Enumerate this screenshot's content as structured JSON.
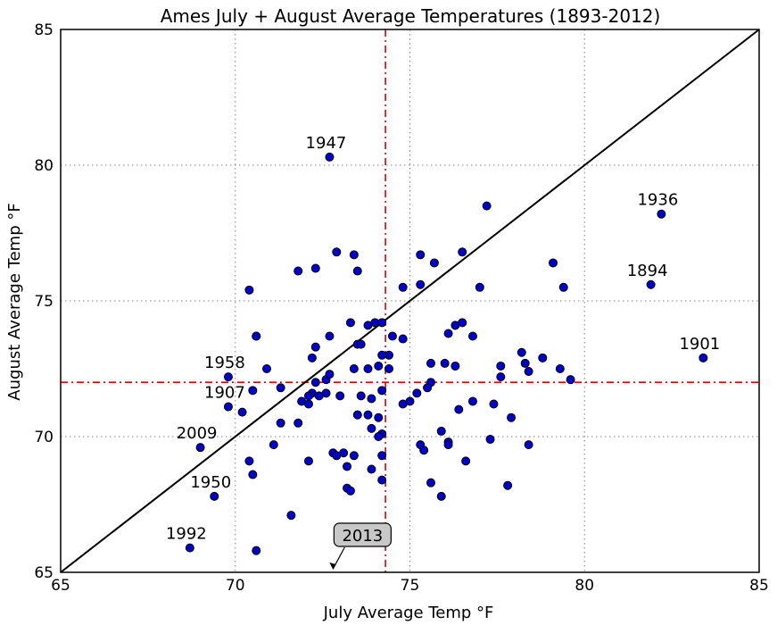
{
  "chart_data": {
    "type": "scatter",
    "title": "Ames July + August Average Temperatures (1893-2012)",
    "xlabel": "July Average Temp °F",
    "ylabel": "August Average Temp °F",
    "xlim": [
      65,
      85
    ],
    "ylim": [
      65,
      85
    ],
    "x_ticks": [
      "65",
      "70",
      "75",
      "80",
      "85"
    ],
    "y_ticks": [
      "65",
      "70",
      "75",
      "80",
      "85"
    ],
    "grid": true,
    "reference_lines": {
      "diagonal": true,
      "mean_x": 74.3,
      "mean_y": 72.0
    },
    "colors": {
      "point": "#0000cc",
      "mean_line": "#dd0000",
      "diagonal": "#000000"
    },
    "points": [
      [
        72.7,
        80.3
      ],
      [
        77.2,
        78.5
      ],
      [
        82.2,
        78.2
      ],
      [
        79.1,
        76.4
      ],
      [
        79.4,
        75.5
      ],
      [
        81.9,
        75.6
      ],
      [
        83.4,
        72.9
      ],
      [
        72.9,
        76.8
      ],
      [
        73.4,
        76.7
      ],
      [
        71.8,
        76.1
      ],
      [
        72.3,
        76.2
      ],
      [
        73.5,
        76.1
      ],
      [
        75.3,
        76.7
      ],
      [
        75.7,
        76.4
      ],
      [
        76.5,
        76.8
      ],
      [
        75.3,
        75.6
      ],
      [
        74.8,
        75.5
      ],
      [
        77.0,
        75.5
      ],
      [
        70.4,
        75.4
      ],
      [
        73.3,
        74.2
      ],
      [
        73.8,
        74.1
      ],
      [
        74.0,
        74.2
      ],
      [
        74.2,
        74.2
      ],
      [
        76.3,
        74.1
      ],
      [
        76.5,
        74.2
      ],
      [
        76.1,
        73.8
      ],
      [
        76.8,
        73.7
      ],
      [
        70.6,
        73.7
      ],
      [
        70.6,
        73.7
      ],
      [
        72.7,
        73.7
      ],
      [
        74.5,
        73.7
      ],
      [
        74.8,
        73.6
      ],
      [
        72.3,
        73.3
      ],
      [
        73.5,
        73.4
      ],
      [
        73.6,
        73.4
      ],
      [
        74.4,
        73.0
      ],
      [
        74.2,
        73.0
      ],
      [
        72.2,
        72.9
      ],
      [
        78.2,
        73.1
      ],
      [
        78.8,
        72.9
      ],
      [
        78.3,
        72.7
      ],
      [
        77.6,
        72.6
      ],
      [
        70.9,
        72.5
      ],
      [
        73.4,
        72.5
      ],
      [
        73.8,
        72.5
      ],
      [
        74.1,
        72.6
      ],
      [
        74.4,
        72.5
      ],
      [
        75.6,
        72.7
      ],
      [
        76.0,
        72.7
      ],
      [
        76.3,
        72.6
      ],
      [
        79.3,
        72.5
      ],
      [
        78.4,
        72.4
      ],
      [
        77.6,
        72.2
      ],
      [
        79.6,
        72.1
      ],
      [
        69.8,
        72.2
      ],
      [
        72.6,
        72.1
      ],
      [
        72.7,
        72.3
      ],
      [
        75.6,
        72.0
      ],
      [
        75.5,
        71.8
      ],
      [
        74.2,
        71.7
      ],
      [
        72.3,
        72.0
      ],
      [
        71.3,
        71.8
      ],
      [
        70.5,
        71.7
      ],
      [
        72.6,
        71.6
      ],
      [
        72.2,
        71.6
      ],
      [
        72.1,
        71.5
      ],
      [
        72.4,
        71.5
      ],
      [
        71.9,
        71.3
      ],
      [
        72.1,
        71.2
      ],
      [
        73.0,
        71.5
      ],
      [
        73.6,
        71.5
      ],
      [
        73.9,
        71.4
      ],
      [
        75.2,
        71.6
      ],
      [
        75.0,
        71.3
      ],
      [
        74.8,
        71.2
      ],
      [
        77.4,
        71.2
      ],
      [
        76.8,
        71.3
      ],
      [
        76.4,
        71.0
      ],
      [
        69.8,
        71.1
      ],
      [
        70.2,
        70.9
      ],
      [
        71.3,
        70.5
      ],
      [
        71.8,
        70.5
      ],
      [
        73.5,
        70.8
      ],
      [
        73.8,
        70.8
      ],
      [
        74.1,
        70.7
      ],
      [
        73.9,
        70.3
      ],
      [
        74.2,
        70.1
      ],
      [
        74.1,
        70.0
      ],
      [
        77.9,
        70.7
      ],
      [
        71.1,
        69.7
      ],
      [
        75.3,
        69.7
      ],
      [
        75.4,
        69.5
      ],
      [
        75.9,
        70.2
      ],
      [
        76.1,
        69.8
      ],
      [
        76.1,
        69.7
      ],
      [
        77.3,
        69.9
      ],
      [
        78.4,
        69.7
      ],
      [
        69.0,
        69.6
      ],
      [
        72.8,
        69.4
      ],
      [
        72.9,
        69.3
      ],
      [
        73.1,
        69.4
      ],
      [
        73.4,
        69.3
      ],
      [
        74.2,
        69.3
      ],
      [
        72.1,
        69.1
      ],
      [
        70.4,
        69.1
      ],
      [
        70.5,
        68.6
      ],
      [
        73.2,
        68.9
      ],
      [
        73.9,
        68.8
      ],
      [
        74.2,
        68.4
      ],
      [
        76.6,
        69.1
      ],
      [
        73.2,
        68.1
      ],
      [
        73.3,
        68.0
      ],
      [
        75.6,
        68.3
      ],
      [
        77.8,
        68.2
      ],
      [
        75.9,
        67.8
      ],
      [
        69.4,
        67.8
      ],
      [
        71.6,
        67.1
      ],
      [
        70.6,
        65.8
      ],
      [
        68.7,
        65.9
      ]
    ],
    "point_labels": [
      {
        "text": "1947",
        "x": 72.7,
        "y": 80.3
      },
      {
        "text": "1936",
        "x": 82.2,
        "y": 78.2
      },
      {
        "text": "1894",
        "x": 81.9,
        "y": 75.6
      },
      {
        "text": "1901",
        "x": 83.4,
        "y": 72.9
      },
      {
        "text": "1958",
        "x": 69.8,
        "y": 72.2
      },
      {
        "text": "1907",
        "x": 69.8,
        "y": 71.1
      },
      {
        "text": "2009",
        "x": 69.0,
        "y": 69.6
      },
      {
        "text": "1950",
        "x": 69.4,
        "y": 67.8
      },
      {
        "text": "1992",
        "x": 68.7,
        "y": 65.9
      }
    ],
    "callout": {
      "text": "2013",
      "x": 72.8,
      "y": 65
    }
  }
}
